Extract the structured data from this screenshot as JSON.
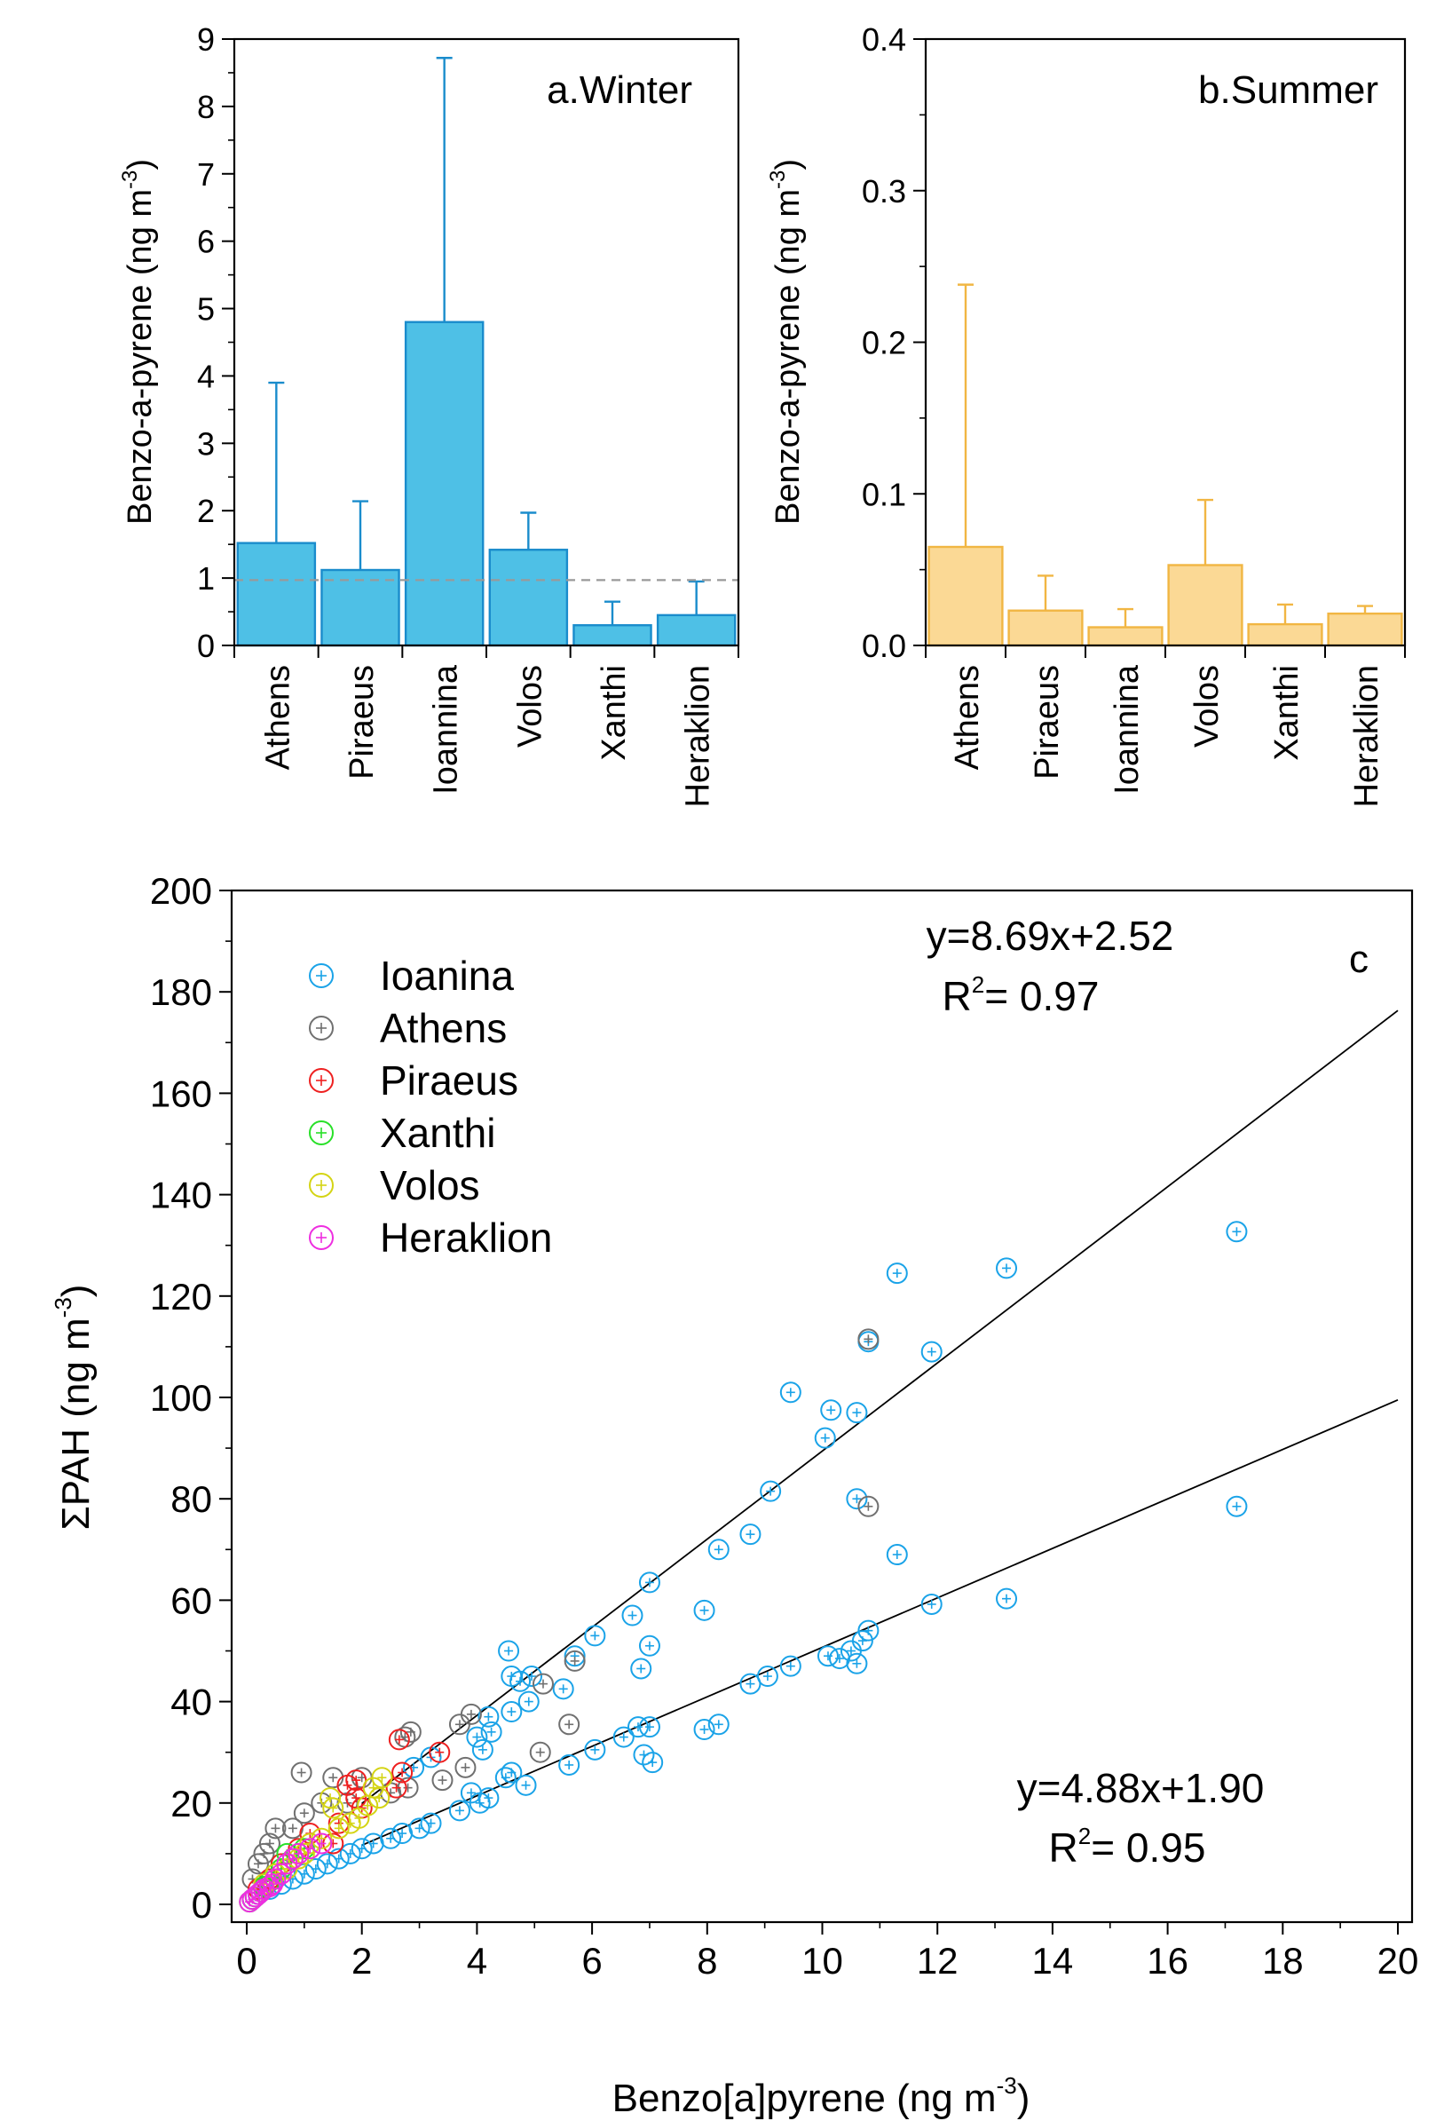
{
  "chart_data": [
    {
      "id": "a",
      "type": "bar",
      "title": "a.Winter",
      "ylabel": "Benzo-a-pyrene (ng m",
      "ylabel_sup": "-3",
      "ylabel_end": ")",
      "ylim": [
        0,
        9
      ],
      "yticks": [
        "0",
        "1",
        "2",
        "3",
        "4",
        "5",
        "6",
        "7",
        "8",
        "9"
      ],
      "categories": [
        "Athens",
        "Piraeus",
        "Ioannina",
        "Volos",
        "Xanthi",
        "Heraklion"
      ],
      "values": [
        1.52,
        1.12,
        4.8,
        1.42,
        0.3,
        0.45
      ],
      "errors": [
        2.38,
        1.02,
        3.92,
        0.55,
        0.35,
        0.5
      ],
      "reference_line": 0.97,
      "color": "#4ec0e6",
      "edge_color": "#1a8ccc"
    },
    {
      "id": "b",
      "type": "bar",
      "title": "b.Summer",
      "ylabel": "Benzo-a-pyrene (ng m",
      "ylabel_sup": "-3",
      "ylabel_end": ")",
      "ylim": [
        0,
        0.4
      ],
      "yticks": [
        "0.0",
        "0.1",
        "0.2",
        "0.3",
        "0.4"
      ],
      "categories": [
        "Athens",
        "Piraeus",
        "Ioannina",
        "Volos",
        "Xanthi",
        "Heraklion"
      ],
      "values": [
        0.065,
        0.023,
        0.012,
        0.053,
        0.014,
        0.021
      ],
      "errors": [
        0.173,
        0.023,
        0.012,
        0.043,
        0.013,
        0.005
      ],
      "color": "#fbd995",
      "edge_color": "#f1b643"
    },
    {
      "id": "c",
      "type": "scatter",
      "panel_label": "c",
      "xlabel": "Benzo[a]pyrene (ng m",
      "xlabel_sup": "-3",
      "xlabel_end": ")",
      "ylabel": "ΣPAH (ng m",
      "ylabel_sup": "-3",
      "ylabel_end": ")",
      "xlim": [
        0,
        20
      ],
      "ylim": [
        0,
        200
      ],
      "xticks": [
        "0",
        "2",
        "4",
        "6",
        "8",
        "10",
        "12",
        "14",
        "16",
        "18",
        "20"
      ],
      "yticks": [
        "0",
        "20",
        "40",
        "60",
        "80",
        "100",
        "120",
        "140",
        "160",
        "180",
        "200"
      ],
      "series": [
        {
          "name": "Ioanina",
          "color": "#1aa3e8",
          "points": [
            [
              17.2,
              132.7
            ],
            [
              13.2,
              125.5
            ],
            [
              11.3,
              124.5
            ],
            [
              10.8,
              111
            ],
            [
              11.9,
              109
            ],
            [
              9.45,
              101
            ],
            [
              10.15,
              97.5
            ],
            [
              10.6,
              97
            ],
            [
              10.05,
              92
            ],
            [
              9.1,
              81.5
            ],
            [
              10.6,
              80
            ],
            [
              8.75,
              73
            ],
            [
              8.2,
              70
            ],
            [
              11.3,
              69
            ],
            [
              7.0,
              63.5
            ],
            [
              6.7,
              57
            ],
            [
              7.95,
              58
            ],
            [
              7.0,
              51
            ],
            [
              6.05,
              53
            ],
            [
              6.85,
              46.5
            ],
            [
              5.7,
              49
            ],
            [
              4.55,
              50
            ],
            [
              4.6,
              45
            ],
            [
              4.95,
              45
            ],
            [
              4.75,
              44
            ],
            [
              5.5,
              42.5
            ],
            [
              4.9,
              40
            ],
            [
              4.6,
              38
            ],
            [
              4.2,
              37
            ],
            [
              4.25,
              34
            ],
            [
              4.0,
              33
            ],
            [
              4.1,
              30.5
            ],
            [
              3.2,
              29
            ],
            [
              2.9,
              27
            ],
            [
              17.2,
              78.5
            ],
            [
              13.2,
              60.3
            ],
            [
              11.9,
              59.2
            ],
            [
              10.8,
              54
            ],
            [
              10.7,
              52
            ],
            [
              10.5,
              50
            ],
            [
              10.1,
              49
            ],
            [
              10.6,
              47.5
            ],
            [
              10.3,
              48.5
            ],
            [
              9.45,
              47
            ],
            [
              9.05,
              45
            ],
            [
              8.75,
              43.5
            ],
            [
              8.2,
              35.5
            ],
            [
              7.95,
              34.5
            ],
            [
              6.8,
              35
            ],
            [
              7.0,
              35
            ],
            [
              6.9,
              29.5
            ],
            [
              7.05,
              28
            ],
            [
              6.55,
              33
            ],
            [
              6.05,
              30.5
            ],
            [
              5.6,
              27.5
            ],
            [
              4.85,
              23.5
            ],
            [
              4.6,
              26
            ],
            [
              4.5,
              25
            ],
            [
              4.2,
              21
            ],
            [
              4.05,
              20
            ],
            [
              3.9,
              22
            ],
            [
              3.7,
              18.5
            ],
            [
              3.2,
              16
            ],
            [
              3.0,
              15
            ],
            [
              2.7,
              14
            ],
            [
              2.5,
              13
            ],
            [
              2.2,
              12
            ],
            [
              2.0,
              11
            ],
            [
              1.8,
              10
            ],
            [
              1.6,
              9
            ],
            [
              1.4,
              8
            ],
            [
              1.2,
              7
            ],
            [
              1.0,
              6
            ],
            [
              0.8,
              5
            ],
            [
              0.6,
              4
            ],
            [
              0.4,
              3
            ],
            [
              0.2,
              2
            ],
            [
              0.1,
              1
            ]
          ]
        },
        {
          "name": "Athens",
          "color": "#707070",
          "points": [
            [
              10.8,
              111.5
            ],
            [
              10.8,
              78.5
            ],
            [
              5.7,
              48
            ],
            [
              5.6,
              35.5
            ],
            [
              5.15,
              43.5
            ],
            [
              5.1,
              30
            ],
            [
              3.7,
              35.5
            ],
            [
              3.9,
              37.5
            ],
            [
              3.8,
              27
            ],
            [
              3.4,
              24.5
            ],
            [
              2.85,
              34
            ],
            [
              2.75,
              33
            ],
            [
              2.8,
              23
            ],
            [
              2.5,
              22
            ],
            [
              2.0,
              25
            ],
            [
              1.75,
              20
            ],
            [
              1.5,
              25
            ],
            [
              1.3,
              20
            ],
            [
              1.0,
              18
            ],
            [
              0.95,
              26
            ],
            [
              0.8,
              15
            ],
            [
              0.5,
              15
            ],
            [
              0.4,
              12
            ],
            [
              0.3,
              10
            ],
            [
              0.2,
              8
            ],
            [
              0.1,
              5
            ]
          ]
        },
        {
          "name": "Piraeus",
          "color": "#ee2020",
          "points": [
            [
              3.35,
              30
            ],
            [
              2.65,
              32.5
            ],
            [
              2.7,
              26
            ],
            [
              2.6,
              23
            ],
            [
              1.9,
              24.5
            ],
            [
              1.75,
              23.5
            ],
            [
              1.9,
              21
            ],
            [
              2.0,
              19
            ],
            [
              1.6,
              16
            ],
            [
              1.5,
              12
            ],
            [
              1.1,
              14
            ],
            [
              0.9,
              11
            ],
            [
              0.6,
              8
            ],
            [
              0.4,
              5
            ],
            [
              0.2,
              3
            ]
          ]
        },
        {
          "name": "Xanthi",
          "color": "#28e028",
          "points": [
            [
              0.6,
              7
            ],
            [
              0.5,
              6
            ],
            [
              0.4,
              4.5
            ],
            [
              0.3,
              3.5
            ],
            [
              0.25,
              2.5
            ],
            [
              0.15,
              1.5
            ],
            [
              0.1,
              1
            ],
            [
              0.05,
              0.5
            ],
            [
              0.8,
              9
            ],
            [
              1.0,
              11
            ],
            [
              0.7,
              10
            ]
          ]
        },
        {
          "name": "Volos",
          "color": "#d4d414",
          "points": [
            [
              2.35,
              25
            ],
            [
              2.2,
              23
            ],
            [
              2.3,
              21
            ],
            [
              2.1,
              19.5
            ],
            [
              1.95,
              17
            ],
            [
              1.8,
              16
            ],
            [
              1.6,
              15
            ],
            [
              1.5,
              19
            ],
            [
              1.45,
              21
            ],
            [
              1.3,
              13
            ],
            [
              1.1,
              12
            ],
            [
              1.0,
              10
            ],
            [
              0.9,
              9
            ],
            [
              0.7,
              7
            ],
            [
              0.5,
              6
            ],
            [
              0.3,
              4
            ]
          ]
        },
        {
          "name": "Heraklion",
          "color": "#ee2ee0",
          "points": [
            [
              0.9,
              10
            ],
            [
              0.8,
              9
            ],
            [
              0.7,
              8
            ],
            [
              0.6,
              6
            ],
            [
              0.5,
              5
            ],
            [
              0.45,
              4
            ],
            [
              0.4,
              3.5
            ],
            [
              0.3,
              3
            ],
            [
              0.25,
              2.5
            ],
            [
              0.2,
              2
            ],
            [
              0.15,
              1.5
            ],
            [
              0.1,
              1
            ],
            [
              0.05,
              0.5
            ],
            [
              1.3,
              12
            ],
            [
              1.1,
              11
            ]
          ]
        }
      ],
      "fits": [
        {
          "equation": "y=8.69x+2.52",
          "r2_label": "R",
          "r2_sup": "2",
          "r2_value": "= 0.97",
          "slope": 8.69,
          "intercept": 2.52,
          "x_range": [
            2.0,
            20
          ]
        },
        {
          "equation": "y=4.88x+1.90",
          "r2_label": "R",
          "r2_sup": "2",
          "r2_value": "= 0.95",
          "slope": 4.88,
          "intercept": 1.9,
          "x_range": [
            2.0,
            20
          ]
        }
      ]
    }
  ]
}
